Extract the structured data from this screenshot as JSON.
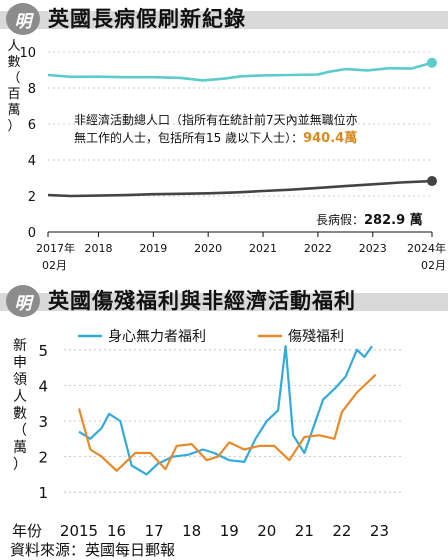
{
  "logo_char": "明",
  "chart_data": [
    {
      "type": "line",
      "title": "英國長病假刷新紀錄",
      "ylabel": "人數（百萬）",
      "ylim": [
        0,
        10
      ],
      "yticks": [
        0,
        2,
        4,
        6,
        8,
        10
      ],
      "xlim": [
        2017.08,
        2024.08
      ],
      "xticks": [
        {
          "x": 2017.08,
          "label": "2017年",
          "label2": "02月"
        },
        {
          "x": 2018,
          "label": "2018"
        },
        {
          "x": 2019,
          "label": "2019"
        },
        {
          "x": 2020,
          "label": "2020"
        },
        {
          "x": 2021,
          "label": "2021"
        },
        {
          "x": 2022,
          "label": "2022"
        },
        {
          "x": 2023,
          "label": "2023"
        },
        {
          "x": 2024.08,
          "label": "2024年",
          "label2": "02月"
        }
      ],
      "series": [
        {
          "name": "非經濟活動總人口",
          "color": "#5ccbcc",
          "x": [
            2017.08,
            2017.5,
            2018.0,
            2018.5,
            2019.0,
            2019.5,
            2019.9,
            2020.3,
            2020.6,
            2021.0,
            2021.5,
            2022.0,
            2022.2,
            2022.5,
            2022.9,
            2023.3,
            2023.7,
            2024.08
          ],
          "y": [
            8.72,
            8.62,
            8.63,
            8.6,
            8.6,
            8.56,
            8.42,
            8.52,
            8.65,
            8.7,
            8.72,
            8.75,
            8.9,
            9.05,
            8.98,
            9.1,
            9.08,
            9.4
          ]
        },
        {
          "name": "長病假",
          "color": "#444444",
          "x": [
            2017.08,
            2017.5,
            2018.0,
            2018.5,
            2019.0,
            2019.5,
            2020.0,
            2020.5,
            2021.0,
            2021.5,
            2022.0,
            2022.5,
            2023.0,
            2023.5,
            2024.08
          ],
          "y": [
            2.05,
            2.0,
            2.02,
            2.05,
            2.1,
            2.12,
            2.15,
            2.2,
            2.28,
            2.35,
            2.45,
            2.55,
            2.65,
            2.75,
            2.83
          ]
        }
      ],
      "annotations": [
        {
          "text": "非經濟活動總人口（指所有在統計前7天內並無職位亦無工作的人士，包括所有15 歲以下人士）：",
          "value": "940.4萬"
        },
        {
          "text": "長病假：",
          "value": "282.9 萬"
        }
      ]
    },
    {
      "type": "line",
      "title": "英國傷殘福利與非經濟活動福利",
      "ylabel": "新申領人數（萬）",
      "ylim": [
        0.5,
        5.5
      ],
      "yticks": [
        1,
        2,
        3,
        4,
        5
      ],
      "xlabel": "年份",
      "xlim": [
        2014.6,
        2023.6
      ],
      "xticks": [
        {
          "x": 2015,
          "label": "2015"
        },
        {
          "x": 2016,
          "label": "16"
        },
        {
          "x": 2017,
          "label": "17"
        },
        {
          "x": 2018,
          "label": "18"
        },
        {
          "x": 2019,
          "label": "19"
        },
        {
          "x": 2020,
          "label": "20"
        },
        {
          "x": 2021,
          "label": "21"
        },
        {
          "x": 2022,
          "label": "22"
        },
        {
          "x": 2023,
          "label": "23"
        }
      ],
      "series": [
        {
          "name": "身心無力者福利",
          "color": "#33aadd",
          "x": [
            2015.0,
            2015.3,
            2015.6,
            2015.8,
            2016.1,
            2016.4,
            2016.8,
            2017.1,
            2017.5,
            2017.9,
            2018.3,
            2018.6,
            2019.0,
            2019.4,
            2019.7,
            2020.0,
            2020.3,
            2020.5,
            2020.7,
            2021.0,
            2021.3,
            2021.5,
            2021.8,
            2022.1,
            2022.4,
            2022.6,
            2022.8
          ],
          "y": [
            2.7,
            2.5,
            2.8,
            3.2,
            3.0,
            1.75,
            1.5,
            1.8,
            2.0,
            2.05,
            2.2,
            2.1,
            1.9,
            1.85,
            2.5,
            3.0,
            3.3,
            5.1,
            2.6,
            2.1,
            3.0,
            3.6,
            3.9,
            4.25,
            5.0,
            4.8,
            5.1
          ]
        },
        {
          "name": "傷殘福利",
          "color": "#e88a2a",
          "x": [
            2015.0,
            2015.3,
            2015.6,
            2016.0,
            2016.5,
            2016.9,
            2017.3,
            2017.6,
            2018.0,
            2018.4,
            2018.7,
            2019.0,
            2019.4,
            2019.8,
            2020.2,
            2020.6,
            2021.0,
            2021.4,
            2021.8,
            2022.0,
            2022.4,
            2022.9
          ],
          "y": [
            3.35,
            2.2,
            2.0,
            1.6,
            2.1,
            2.1,
            1.65,
            2.3,
            2.35,
            1.9,
            2.0,
            2.4,
            2.2,
            2.3,
            2.3,
            1.9,
            2.55,
            2.6,
            2.5,
            3.25,
            3.8,
            4.3
          ]
        }
      ]
    }
  ],
  "source": "資料來源：英國每日郵報"
}
